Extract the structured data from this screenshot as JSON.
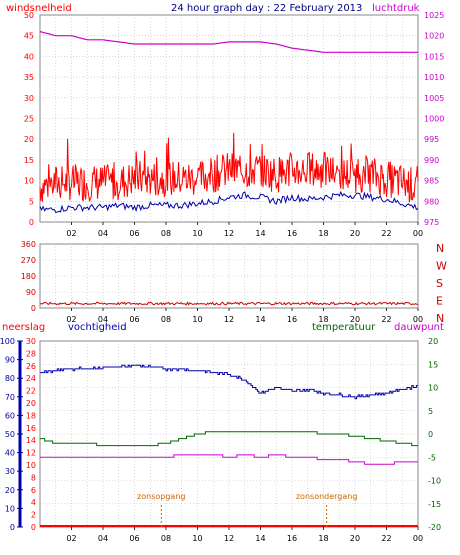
{
  "title": "24 hour graph day : 22 February 2013",
  "x_tick_labels": [
    "02",
    "04",
    "06",
    "08",
    "10",
    "12",
    "14",
    "16",
    "18",
    "20",
    "22",
    "00"
  ],
  "colors": {
    "wind": "#ff0000",
    "gust_line": "#0000aa",
    "pressure": "#cc00cc",
    "direction": "#cc0000",
    "humidity": "#0000aa",
    "temperature": "#006600",
    "dewpoint": "#cc00cc",
    "rain": "#ff0000",
    "sun": "#cc6600",
    "axis": "#000000"
  },
  "top_panel": {
    "left_label": "windsnelheid",
    "right_label": "luchtdruk",
    "left_ticks": [
      "0",
      "5",
      "10",
      "15",
      "20",
      "25",
      "30",
      "35",
      "40",
      "45",
      "50"
    ],
    "right_ticks": [
      "975",
      "980",
      "985",
      "990",
      "995",
      "1000",
      "1005",
      "1010",
      "1015",
      "1020",
      "1025"
    ]
  },
  "mid_panel": {
    "left_ticks": [
      "0",
      "90",
      "180",
      "270",
      "360"
    ],
    "right_labels": [
      "N",
      "W",
      "S",
      "E",
      "N"
    ]
  },
  "bottom_panel": {
    "label_rain": "neerslag",
    "label_humidity": "vochtigheid",
    "label_temp": "temperatuur",
    "label_dew": "dauwpunt",
    "rain_ticks": [
      "0",
      "10",
      "20",
      "30",
      "40",
      "50",
      "60",
      "70",
      "80",
      "90",
      "100"
    ],
    "temp_ticks": [
      "0",
      "2",
      "4",
      "6",
      "8",
      "10",
      "12",
      "14",
      "16",
      "18",
      "20",
      "22",
      "24",
      "26",
      "28",
      "30"
    ],
    "right_ticks": [
      "-20",
      "-15",
      "-10",
      "-5",
      "0",
      "5",
      "10",
      "15",
      "20"
    ],
    "sunrise_label": "zonsopgang",
    "sunset_label": "zonsondergang"
  },
  "chart_data": [
    {
      "type": "line",
      "title": "24 hour graph day : 22 February 2013",
      "x_hours": [
        0,
        1,
        2,
        3,
        4,
        5,
        6,
        7,
        8,
        9,
        10,
        11,
        12,
        13,
        14,
        15,
        16,
        17,
        18,
        19,
        20,
        21,
        22,
        23,
        24
      ],
      "series": [
        {
          "name": "luchtdruk",
          "axis": "right",
          "values": [
            1021,
            1020,
            1020,
            1019,
            1019,
            1018.5,
            1018,
            1018,
            1018,
            1018,
            1018,
            1018,
            1018.5,
            1018.5,
            1018.5,
            1018,
            1017,
            1016.5,
            1016,
            1016,
            1016,
            1016,
            1016,
            1016,
            1016
          ]
        },
        {
          "name": "windsnelheid",
          "axis": "left",
          "values": [
            8,
            9,
            9,
            9,
            9,
            9,
            10,
            10,
            10,
            10,
            10,
            11,
            12,
            12,
            12,
            11,
            12,
            12,
            12,
            11,
            11,
            11,
            10,
            9,
            8
          ]
        },
        {
          "name": "",
          "axis": "left",
          "values": [
            3,
            3,
            3.5,
            3.5,
            3.5,
            4,
            3.5,
            4,
            4,
            4,
            4.5,
            5,
            6,
            6.5,
            6,
            5,
            6,
            5.5,
            6,
            6.5,
            6.5,
            6,
            5.5,
            4.5,
            3.5
          ]
        }
      ],
      "ylim_left": [
        0,
        50
      ],
      "ylim_right": [
        975,
        1025
      ]
    },
    {
      "type": "line",
      "x_hours": [
        0,
        24
      ],
      "series": [
        {
          "name": "",
          "values": [
            25,
            25
          ]
        }
      ],
      "ylim": [
        0,
        360
      ]
    },
    {
      "type": "line",
      "x_hours": [
        0,
        1,
        2,
        3,
        4,
        5,
        6,
        7,
        8,
        9,
        10,
        11,
        12,
        13,
        14,
        15,
        16,
        17,
        18,
        19,
        20,
        21,
        22,
        23,
        24
      ],
      "series": [
        {
          "name": "vochtigheid",
          "axis": "humidity",
          "values": [
            83,
            84,
            85,
            85,
            86,
            86,
            87,
            86,
            85,
            85,
            84,
            83,
            82,
            79,
            72,
            75,
            73,
            74,
            72,
            71,
            70,
            71,
            72,
            74,
            76
          ]
        },
        {
          "name": "temperatuur",
          "axis": "right",
          "values": [
            -1,
            -2,
            -2,
            -2,
            -2.5,
            -2.5,
            -2.5,
            -2.5,
            -2,
            -1,
            0,
            0.5,
            0.5,
            0.5,
            0.5,
            0.5,
            0.5,
            0.5,
            0,
            0,
            -0.5,
            -1,
            -1.5,
            -2,
            -2.5
          ]
        },
        {
          "name": "dauwpunt",
          "axis": "right",
          "values": [
            -5,
            -5,
            -5,
            -5,
            -5,
            -5,
            -5,
            -5,
            -5,
            -4.5,
            -4.5,
            -4.5,
            -5,
            -4.5,
            -5,
            -4.5,
            -5,
            -5,
            -5.5,
            -5.5,
            -6,
            -6.5,
            -6.5,
            -6,
            -6
          ]
        },
        {
          "name": "neerslag",
          "axis": "rain",
          "values": [
            0,
            0,
            0,
            0,
            0,
            0,
            0,
            0,
            0,
            0,
            0,
            0,
            0,
            0,
            0,
            0,
            0,
            0,
            0,
            0,
            0,
            0,
            0,
            0,
            0
          ]
        }
      ],
      "ylim_rain": [
        0,
        100
      ],
      "ylim_temp": [
        0,
        30
      ],
      "ylim_right": [
        -20,
        20
      ],
      "sunrise_hour": 7.7,
      "sunset_hour": 18.2
    }
  ]
}
